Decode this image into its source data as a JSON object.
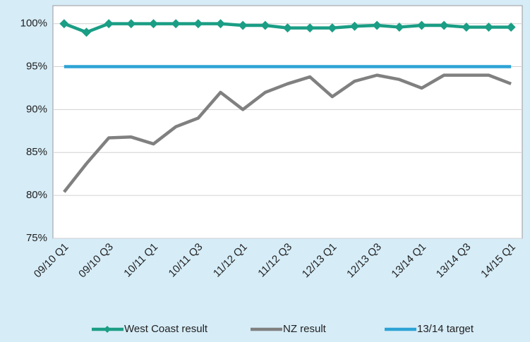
{
  "chart_data": {
    "type": "line",
    "categories": [
      "09/10 Q1",
      null,
      "09/10 Q3",
      null,
      "10/11 Q1",
      null,
      "10/11 Q3",
      null,
      "11/12 Q1",
      null,
      "11/12 Q3",
      null,
      "12/13 Q1",
      null,
      "12/13 Q3",
      null,
      "13/14 Q1",
      null,
      "13/14 Q3",
      null,
      "14/15 Q1"
    ],
    "series": [
      {
        "name": "West Coast result",
        "color": "#1a9e85",
        "marker": "diamond",
        "values": [
          100,
          99,
          100,
          100,
          100,
          100,
          100,
          100,
          99.8,
          99.8,
          99.5,
          99.5,
          99.5,
          99.7,
          99.8,
          99.6,
          99.8,
          99.8,
          99.6,
          99.6,
          99.6
        ]
      },
      {
        "name": "NZ result",
        "color": "#808080",
        "values": [
          80.4,
          83.7,
          86.7,
          86.8,
          86,
          88,
          89,
          92,
          90,
          92,
          93,
          93.8,
          91.5,
          93.3,
          94,
          93.5,
          92.5,
          94,
          94,
          94,
          93
        ]
      },
      {
        "name": "13/14 target",
        "color": "#2da3d6",
        "values": [
          95,
          95,
          95,
          95,
          95,
          95,
          95,
          95,
          95,
          95,
          95,
          95,
          95,
          95,
          95,
          95,
          95,
          95,
          95,
          95,
          95
        ]
      }
    ],
    "ylim": [
      75,
      102.1
    ],
    "yticks": [
      {
        "value": 75,
        "label": "75%"
      },
      {
        "value": 80,
        "label": "80%"
      },
      {
        "value": 85,
        "label": "85%"
      },
      {
        "value": 90,
        "label": "90%"
      },
      {
        "value": 95,
        "label": "95%"
      },
      {
        "value": 100,
        "label": "100%"
      }
    ],
    "grid": true,
    "legend": "bottom"
  }
}
